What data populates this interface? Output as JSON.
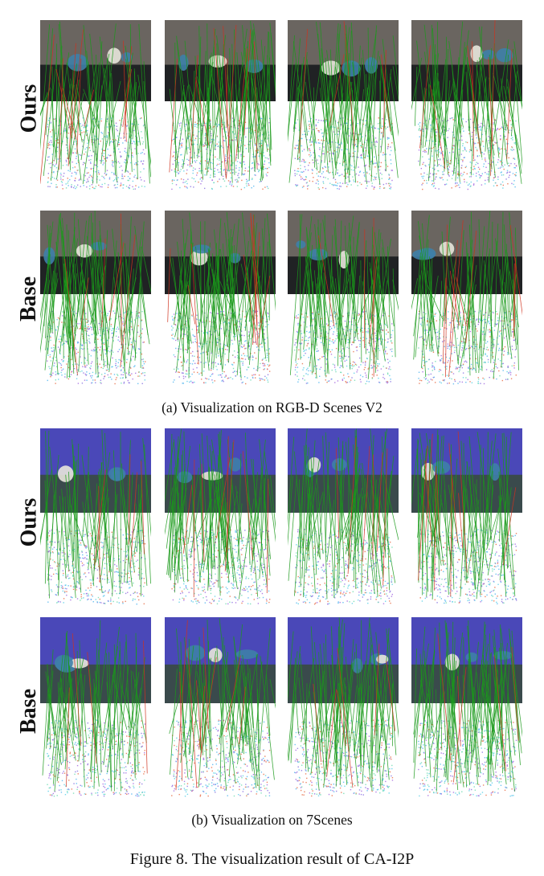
{
  "row_labels": {
    "a_top": "Ours",
    "a_bottom": "Base",
    "b_top": "Ours",
    "b_bottom": "Base"
  },
  "subcaptions": {
    "a": "(a) Visualization on RGB-D Scenes V2",
    "b": "(b) Visualization on 7Scenes"
  },
  "figure_caption": "Figure 8. The visualization result of CA-I2P",
  "colors": {
    "correct_match": "#1a9a1a",
    "wrong_match": "#d0321e",
    "wall_scene_a": "#6a6560",
    "table_scene_a": "#202224",
    "wall_scene_b": "#4a48b8",
    "table_scene_b": "#3a4a4c"
  }
}
